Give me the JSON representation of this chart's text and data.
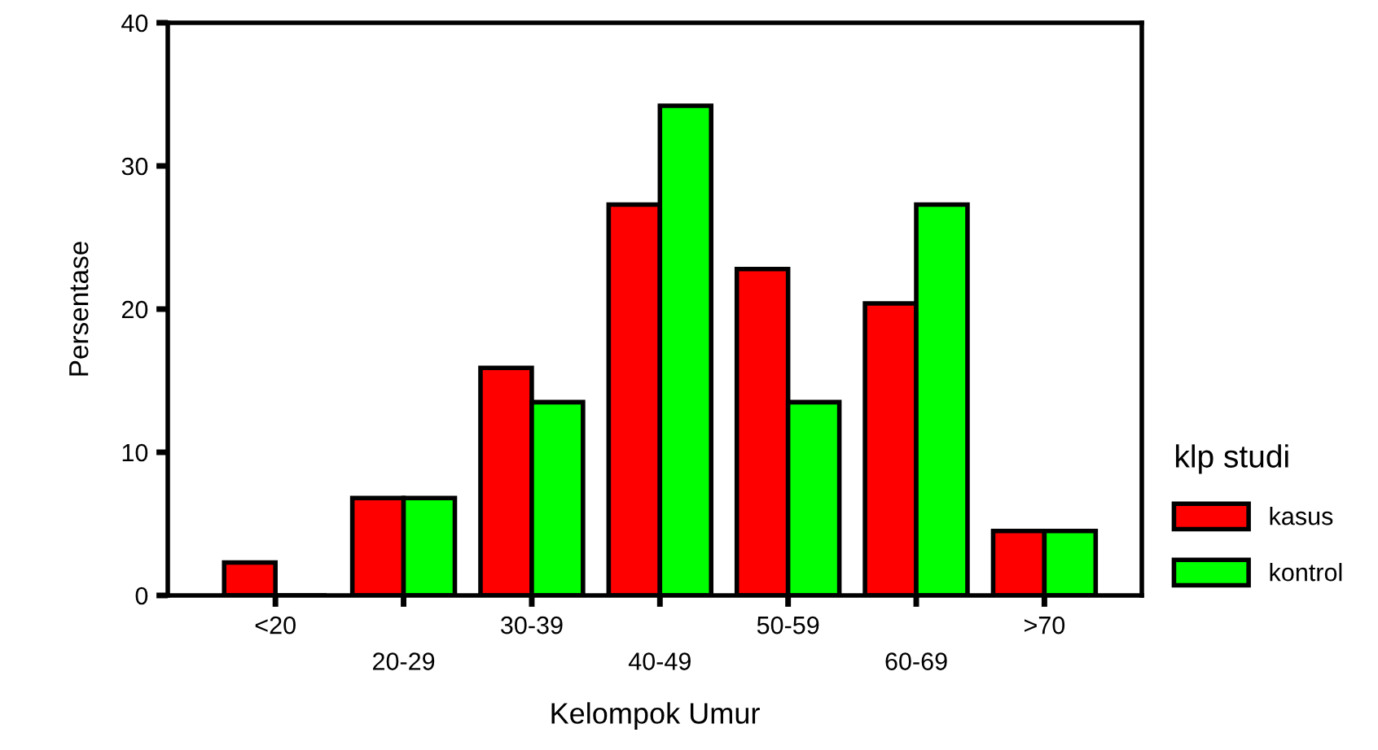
{
  "chart_data": {
    "type": "bar",
    "xlabel": "Kelompok Umur",
    "ylabel": "Persentase",
    "legend_title": "klp studi",
    "categories": [
      "<20",
      "20-29",
      "30-39",
      "40-49",
      "50-59",
      "60-69",
      ">70"
    ],
    "series": [
      {
        "name": "kasus",
        "color": "#ff0000",
        "values": [
          2.3,
          6.8,
          15.9,
          27.3,
          22.8,
          20.4,
          4.5
        ]
      },
      {
        "name": "kontrol",
        "color": "#00ff00",
        "values": [
          0,
          6.8,
          13.5,
          34.2,
          13.5,
          27.3,
          4.5
        ]
      }
    ],
    "ylim": [
      0,
      40
    ],
    "yticks": [
      0,
      10,
      20,
      30,
      40
    ],
    "grid": false,
    "legend": "right"
  }
}
